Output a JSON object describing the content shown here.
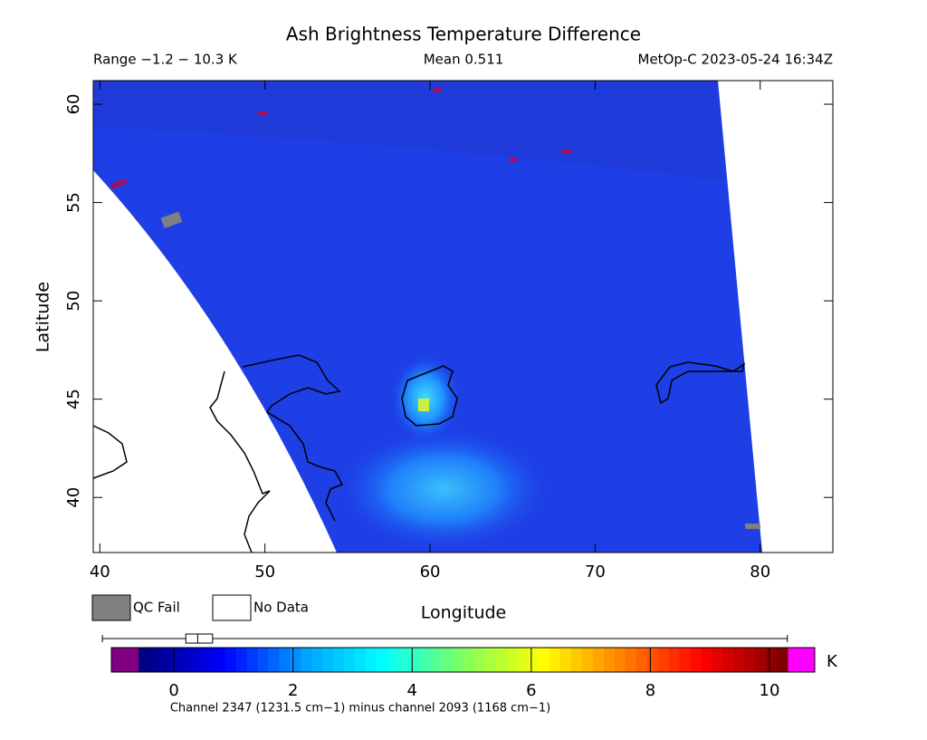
{
  "header": {
    "title": "Ash Brightness Temperature Difference",
    "range": "Range −1.2 − 10.3 K",
    "mean": "Mean 0.511",
    "source": "MetOp-C 2023-05-24 16:34Z"
  },
  "map": {
    "xlabel": "Longitude",
    "ylabel": "Latitude",
    "xlim": [
      39.6,
      84.4
    ],
    "ylim": [
      37.2,
      61.2
    ],
    "xticks": [
      40,
      50,
      60,
      70,
      80
    ],
    "yticks": [
      40,
      45,
      50,
      55,
      60
    ]
  },
  "legend": [
    {
      "label": "QC Fail",
      "color": "#808080"
    },
    {
      "label": "No Data",
      "color": "#ffffff"
    }
  ],
  "colorbar": {
    "lim": [
      -1.05,
      10.76
    ],
    "ticks": [
      0,
      2,
      4,
      6,
      8,
      10
    ],
    "unit": "K",
    "under_color": "#800080",
    "over_color": "#ff00ff",
    "colors": [
      "#000080",
      "#0000ff",
      "#00a0ff",
      "#00ffff",
      "#80ff60",
      "#ffff00",
      "#ff8000",
      "#ff0000",
      "#800000"
    ],
    "box": {
      "min": -1.2,
      "q1": 0.2,
      "median": 0.4,
      "q3": 0.65,
      "max": 10.3
    }
  },
  "footer": "Channel 2347 (1231.5 cm−1) minus channel 2093 (1168 cm−1)"
}
